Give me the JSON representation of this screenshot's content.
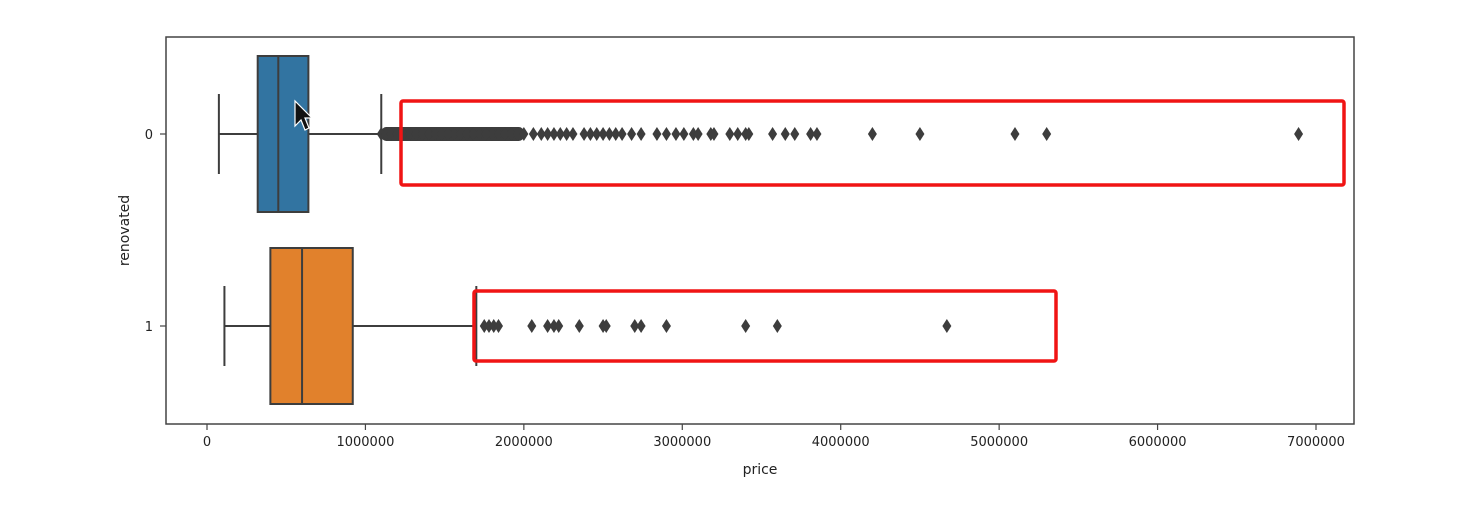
{
  "chart_data": {
    "type": "box",
    "orientation": "horizontal",
    "xlabel": "price",
    "ylabel": "renovated",
    "xlim": [
      -250000,
      7150000
    ],
    "xticks": [
      0,
      1000000,
      2000000,
      3000000,
      4000000,
      5000000,
      6000000,
      7000000
    ],
    "xtick_labels": [
      "0",
      "1000000",
      "2000000",
      "3000000",
      "4000000",
      "5000000",
      "6000000",
      "7000000"
    ],
    "categories": [
      "0",
      "1"
    ],
    "series": [
      {
        "category": "0",
        "color": "#3274a1",
        "whisker_low": 75000,
        "q1": 320000,
        "median": 450000,
        "q3": 640000,
        "whisker_high": 1100000,
        "dense_outlier_range": [
          1100000,
          2000000
        ],
        "outliers": [
          1100000,
          1130000,
          1160000,
          1200000,
          1240000,
          1280000,
          1320000,
          1360000,
          1400000,
          1440000,
          1480000,
          1520000,
          1560000,
          1600000,
          1640000,
          1680000,
          1720000,
          1760000,
          1800000,
          1840000,
          1880000,
          1920000,
          1960000,
          2000000,
          2060000,
          2110000,
          2150000,
          2190000,
          2230000,
          2270000,
          2310000,
          2380000,
          2420000,
          2460000,
          2500000,
          2540000,
          2580000,
          2620000,
          2680000,
          2740000,
          2840000,
          2900000,
          2960000,
          3010000,
          3070000,
          3100000,
          3180000,
          3200000,
          3300000,
          3350000,
          3400000,
          3420000,
          3570000,
          3650000,
          3710000,
          3810000,
          3850000,
          4200000,
          4500000,
          5100000,
          5300000,
          6890000
        ]
      },
      {
        "category": "1",
        "color": "#e1812c",
        "whisker_low": 110000,
        "q1": 400000,
        "median": 600000,
        "q3": 920000,
        "whisker_high": 1700000,
        "outliers": [
          1750000,
          1780000,
          1810000,
          1840000,
          2050000,
          2150000,
          2190000,
          2220000,
          2350000,
          2500000,
          2520000,
          2700000,
          2740000,
          2900000,
          3400000,
          3600000,
          4670000
        ]
      }
    ],
    "highlight_color": "#f01414"
  }
}
